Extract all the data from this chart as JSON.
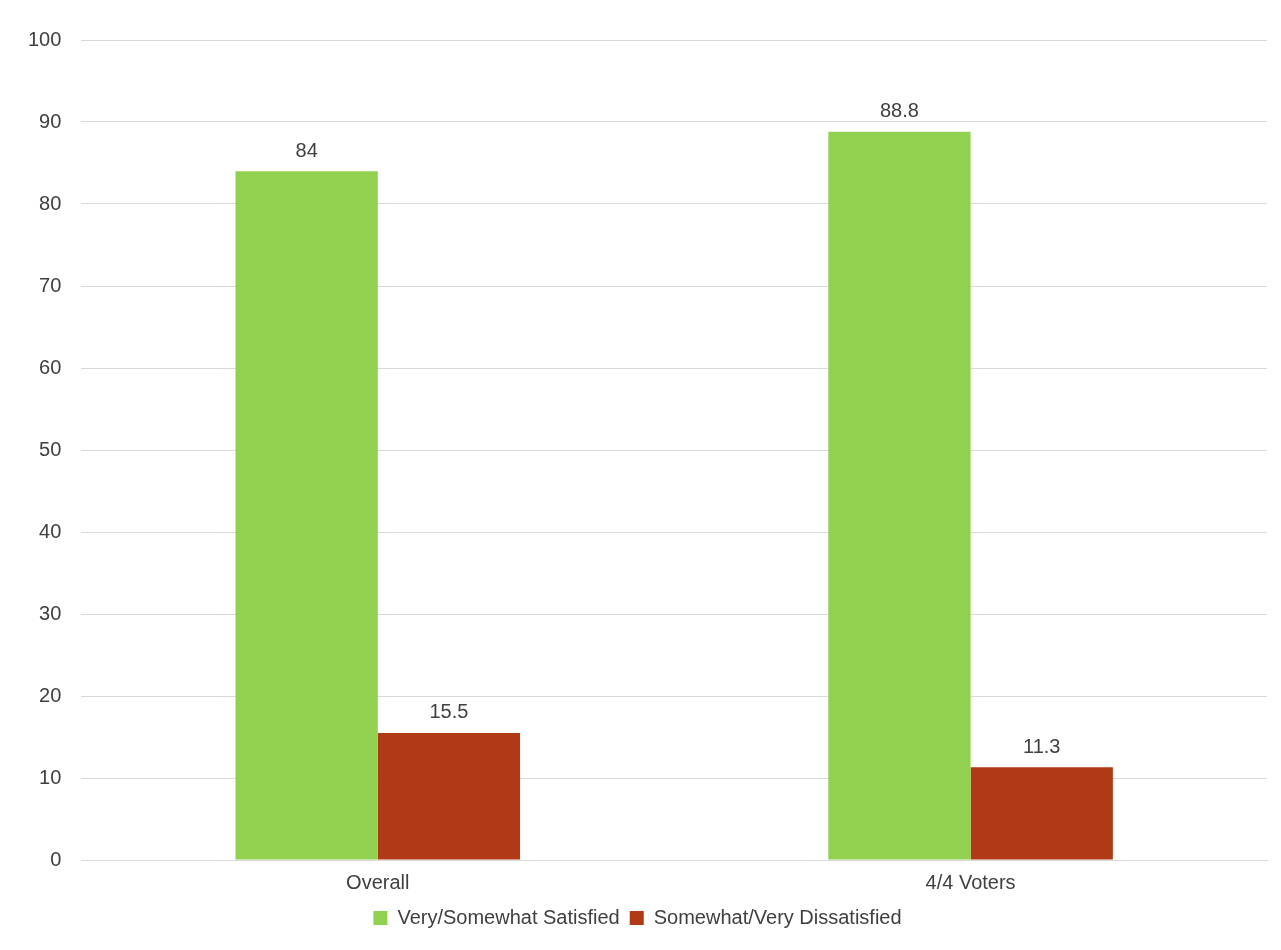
{
  "chart_data": {
    "type": "bar",
    "categories": [
      "Overall",
      "4/4 Voters"
    ],
    "series": [
      {
        "name": "Very/Somewhat Satisfied",
        "color": "#92d050",
        "values": [
          84,
          88.8
        ]
      },
      {
        "name": "Somewhat/Very Dissatisfied",
        "color": "#b13a16",
        "values": [
          15.5,
          11.3
        ]
      }
    ],
    "ylim": [
      0,
      100
    ],
    "yticks": [
      0,
      10,
      20,
      30,
      40,
      50,
      60,
      70,
      80,
      90,
      100
    ],
    "grid": "y",
    "legend": "bottom",
    "data_labels": true
  }
}
